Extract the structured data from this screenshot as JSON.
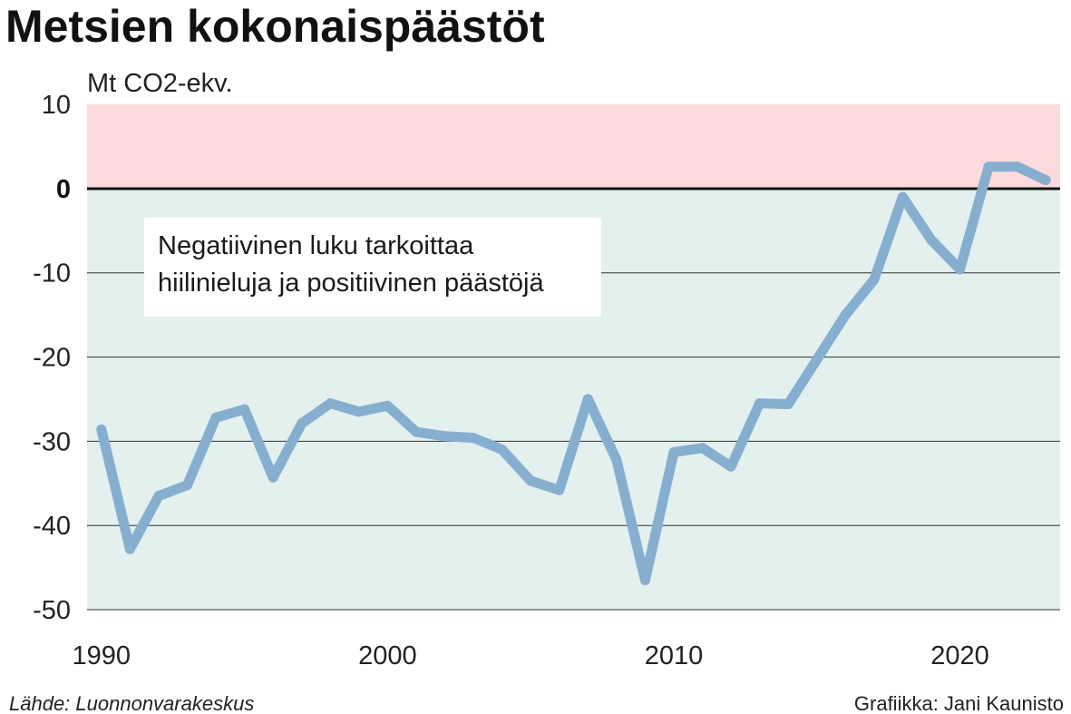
{
  "title": "Metsien kokonaispäästöt",
  "source": "Lähde: Luonnonvarakeskus",
  "credit": "Grafiikka: Jani Kaunisto",
  "annotation": [
    "Negatiivinen luku tarkoittaa",
    "hiilinieluja ja positiivinen päästöjä"
  ],
  "colors": {
    "line": "#86aecf",
    "positive_band": "#fcdadd",
    "negative_band": "#e3f0ee",
    "grid": "#333333",
    "zero_line": "#111111"
  },
  "chart_data": {
    "type": "line",
    "title": "Metsien kokonaispäästöt",
    "ylabel": "Mt CO2-ekv.",
    "xlabel": "",
    "ylim": [
      -50,
      10
    ],
    "xlim": [
      1989.5,
      2023.5
    ],
    "yticks": [
      10,
      0,
      -10,
      -20,
      -30,
      -40,
      -50
    ],
    "xticks": [
      1990,
      2000,
      2010,
      2020
    ],
    "grid": true,
    "x": [
      1990,
      1991,
      1992,
      1993,
      1994,
      1995,
      1996,
      1997,
      1998,
      1999,
      2000,
      2001,
      2002,
      2003,
      2004,
      2005,
      2006,
      2007,
      2008,
      2009,
      2010,
      2011,
      2012,
      2013,
      2014,
      2015,
      2016,
      2017,
      2018,
      2019,
      2020,
      2021,
      2022,
      2023
    ],
    "series": [
      {
        "values": [
          -28.6,
          -42.8,
          -36.5,
          -35.2,
          -27.2,
          -26.2,
          -34.3,
          -27.9,
          -25.5,
          -26.5,
          -25.8,
          -28.9,
          -29.4,
          -29.6,
          -31.0,
          -34.7,
          -35.8,
          -25.0,
          -32.2,
          -46.5,
          -31.3,
          -30.8,
          -33.0,
          -25.5,
          -25.6,
          -20.3,
          -15.0,
          -10.8,
          -1.0,
          -6.1,
          -9.6,
          2.6,
          2.6,
          1.0
        ]
      }
    ]
  }
}
